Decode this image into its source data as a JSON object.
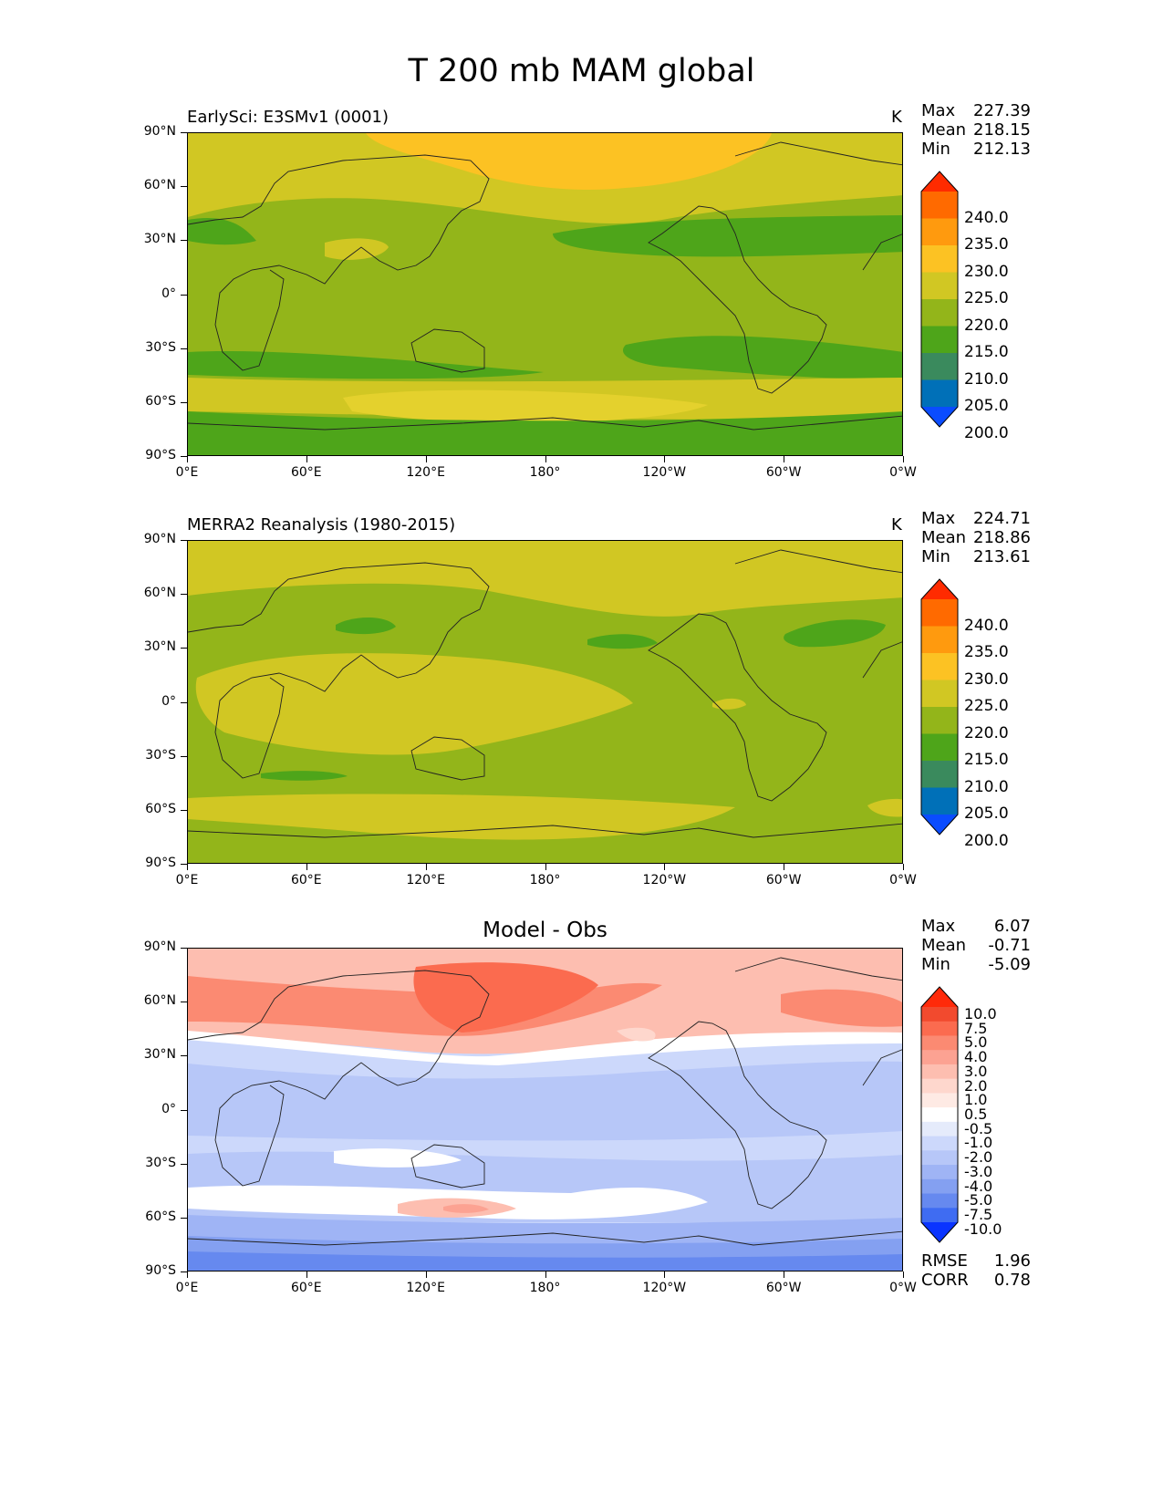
{
  "title": "T 200 mb MAM global",
  "axes": {
    "y_ticks": [
      "90°N",
      "60°N",
      "30°N",
      "0°",
      "30°S",
      "60°S",
      "90°S"
    ],
    "x_ticks": [
      "0°E",
      "60°E",
      "120°E",
      "180°",
      "120°W",
      "60°W",
      "0°W"
    ]
  },
  "panels": [
    {
      "title": "EarlySci: E3SMv1 (0001)",
      "unit": "K",
      "stats": [
        {
          "label": "Max",
          "value": "227.39"
        },
        {
          "label": "Mean",
          "value": "218.15"
        },
        {
          "label": "Min",
          "value": "212.13"
        }
      ],
      "colorbar": {
        "labels": [
          "240.0",
          "235.0",
          "230.0",
          "225.0",
          "220.0",
          "215.0",
          "210.0",
          "205.0",
          "200.0"
        ],
        "colors": [
          "#ff2b00",
          "#ff6a00",
          "#ff9a0e",
          "#fcc223",
          "#d1c723",
          "#93b51a",
          "#4ea51a",
          "#3a8a5d",
          "#0070b8",
          "#0a4cff"
        ]
      }
    },
    {
      "title": "MERRA2 Reanalysis (1980-2015)",
      "unit": "K",
      "stats": [
        {
          "label": "Max",
          "value": "224.71"
        },
        {
          "label": "Mean",
          "value": "218.86"
        },
        {
          "label": "Min",
          "value": "213.61"
        }
      ],
      "colorbar": {
        "labels": [
          "240.0",
          "235.0",
          "230.0",
          "225.0",
          "220.0",
          "215.0",
          "210.0",
          "205.0",
          "200.0"
        ],
        "colors": [
          "#ff2b00",
          "#ff6a00",
          "#ff9a0e",
          "#fcc223",
          "#d1c723",
          "#93b51a",
          "#4ea51a",
          "#3a8a5d",
          "#0070b8",
          "#0a4cff"
        ]
      }
    },
    {
      "title": "Model - Obs",
      "stats": [
        {
          "label": "Max",
          "value": "6.07"
        },
        {
          "label": "Mean",
          "value": "-0.71"
        },
        {
          "label": "Min",
          "value": "-5.09"
        }
      ],
      "extra_stats": [
        {
          "label": "RMSE",
          "value": "1.96"
        },
        {
          "label": "CORR",
          "value": "0.78"
        }
      ],
      "colorbar": {
        "labels": [
          "10.0",
          "7.5",
          "5.0",
          "4.0",
          "3.0",
          "2.0",
          "1.0",
          "0.5",
          "-0.5",
          "-1.0",
          "-2.0",
          "-3.0",
          "-4.0",
          "-5.0",
          "-7.5",
          "-10.0"
        ],
        "colors": [
          "#ff2a0a",
          "#f24a2e",
          "#fb6b4f",
          "#fb8a72",
          "#fca292",
          "#fdbeb0",
          "#fed7cd",
          "#feeae4",
          "#ffffff",
          "#e5ebfb",
          "#ccd8fb",
          "#b7c7f8",
          "#9fb4f5",
          "#84a0f1",
          "#6689ef",
          "#3f6cf2",
          "#0a34ff"
        ]
      }
    }
  ]
}
